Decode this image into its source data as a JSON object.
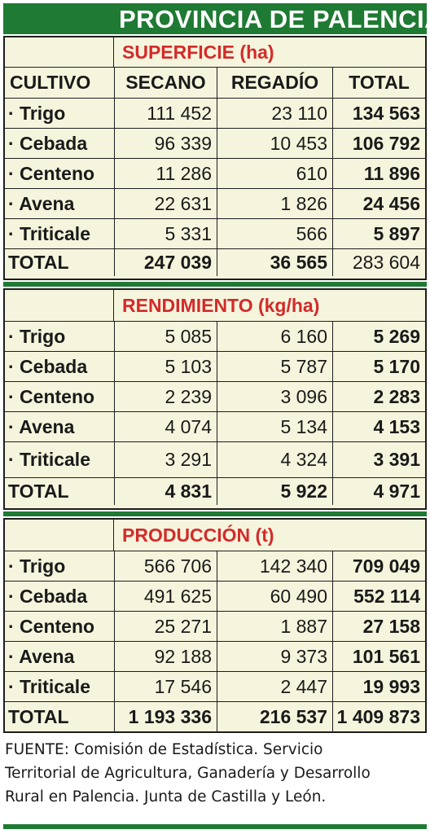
{
  "title": "PROVINCIA DE PALENCIA",
  "columns": [
    "CULTIVO",
    "SECANO",
    "REGADÍO",
    "TOTAL"
  ],
  "sections": [
    {
      "heading": "SUPERFICIE (ha)",
      "rows": [
        [
          "· Trigo",
          "111 452",
          "23 110",
          "134 563"
        ],
        [
          "· Cebada",
          "96 339",
          "10 453",
          "106 792"
        ],
        [
          "· Centeno",
          "11 286",
          "610",
          "11 896"
        ],
        [
          "· Avena",
          "22 631",
          "1 826",
          "24 456"
        ],
        [
          "· Triticale",
          "5 331",
          "566",
          "5 897"
        ]
      ],
      "total": [
        "TOTAL",
        "247 039",
        "36 565",
        "283 604"
      ]
    },
    {
      "heading": "RENDIMIENTO (kg/ha)",
      "rows": [
        [
          "· Trigo",
          "5 085",
          "6 160",
          "5 269"
        ],
        [
          "· Cebada",
          "5 103",
          "5 787",
          "5 170"
        ],
        [
          "· Centeno",
          "2 239",
          "3 096",
          "2 283"
        ],
        [
          "· Avena",
          "4 074",
          "5 134",
          "4 153"
        ],
        [
          "· Triticale",
          "3 291",
          "4 324",
          "3 391"
        ]
      ],
      "total": [
        "TOTAL",
        "4 831",
        "5 922",
        "4 971"
      ]
    },
    {
      "heading": "PRODUCCIÓN (t)",
      "rows": [
        [
          "· Trigo",
          "566 706",
          "142 340",
          "709 049"
        ],
        [
          "· Cebada",
          "491 625",
          "60 490",
          "552 114"
        ],
        [
          "· Centeno",
          "25 271",
          "1 887",
          "27 158"
        ],
        [
          "· Avena",
          "92 188",
          "9 373",
          "101 561"
        ],
        [
          "· Triticale",
          "17 546",
          "2 447",
          "19 993"
        ]
      ],
      "total": [
        "TOTAL",
        "1 193 336",
        "216 537",
        "1 409 873"
      ]
    }
  ],
  "footer": [
    "FUENTE: Comisión de Estadística. Servicio",
    "Territorial de Agricultura, Ganadería y Desarrollo",
    "Rural en Palencia. Junta de Castilla y León."
  ]
}
